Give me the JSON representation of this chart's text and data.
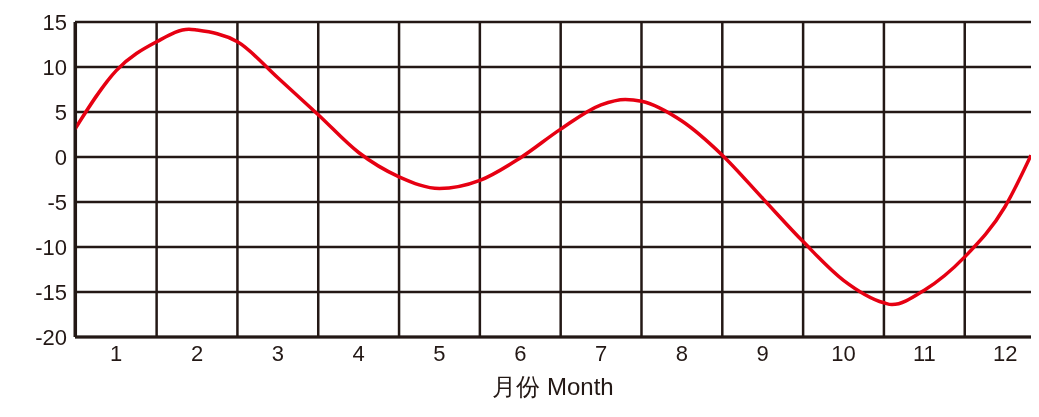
{
  "chart_data": {
    "type": "line",
    "xlabel": "月份 Month",
    "x": [
      0.49,
      1,
      1.5,
      1.9,
      2,
      2.5,
      3,
      3.5,
      4,
      4.5,
      5,
      5.5,
      6,
      6.5,
      7,
      7.3,
      7.5,
      8,
      8.5,
      9,
      9.5,
      10,
      10.5,
      10.6,
      11,
      11.5,
      12,
      12.32
    ],
    "series": [
      {
        "color": "#e60012",
        "values": [
          3.1,
          9.6,
          12.8,
          14.2,
          14.1,
          12.8,
          8.8,
          4.7,
          0.5,
          -2.2,
          -3.5,
          -2.6,
          -0.1,
          3.1,
          5.8,
          6.4,
          6.2,
          4.0,
          0.2,
          -4.6,
          -9.4,
          -13.7,
          -16.2,
          -16.4,
          -14.8,
          -11.1,
          -5.5,
          0.2
        ]
      }
    ],
    "xlim": [
      0.49,
      12.32
    ],
    "xticks": [
      {
        "value": 0.5,
        "label": null
      },
      1,
      {
        "value": 1.5,
        "label": null
      },
      2,
      {
        "value": 2.5,
        "label": null
      },
      3,
      {
        "value": 3.5,
        "label": null
      },
      4,
      {
        "value": 4.5,
        "label": null
      },
      5,
      {
        "value": 5.5,
        "label": null
      },
      6,
      {
        "value": 6.5,
        "label": null
      },
      7,
      {
        "value": 7.5,
        "label": null
      },
      8,
      {
        "value": 8.5,
        "label": null
      },
      9,
      {
        "value": 9.5,
        "label": null
      },
      10,
      {
        "value": 10.5,
        "label": null
      },
      11,
      {
        "value": 11.5,
        "label": null
      },
      12
    ],
    "ylim": [
      -20,
      15
    ],
    "yticks": [
      -20,
      -15,
      -10,
      -5,
      0,
      5,
      10,
      15
    ],
    "grid": true,
    "marker": "none",
    "line_style": "solid"
  }
}
